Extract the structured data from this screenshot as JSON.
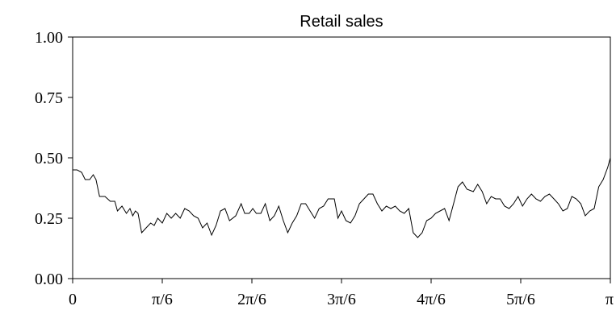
{
  "chart_data": {
    "type": "line",
    "title": "Retail sales",
    "xlabel": "",
    "ylabel": "",
    "xlim": [
      0,
      6
    ],
    "ylim": [
      0,
      1
    ],
    "x_ticks": [
      {
        "value": 0,
        "label": "0"
      },
      {
        "value": 1,
        "label": "π/6"
      },
      {
        "value": 2,
        "label": "2π/6"
      },
      {
        "value": 3,
        "label": "3π/6"
      },
      {
        "value": 4,
        "label": "4π/6"
      },
      {
        "value": 5,
        "label": "5π/6"
      },
      {
        "value": 6,
        "label": "π"
      }
    ],
    "y_ticks": [
      {
        "value": 0.0,
        "label": "0.00"
      },
      {
        "value": 0.25,
        "label": "0.25"
      },
      {
        "value": 0.5,
        "label": "0.50"
      },
      {
        "value": 0.75,
        "label": "0.75"
      },
      {
        "value": 1.0,
        "label": "1.00"
      }
    ],
    "grid": false,
    "series": [
      {
        "color": "#000000",
        "points": [
          [
            0.0,
            0.45
          ],
          [
            0.05,
            0.45
          ],
          [
            0.1,
            0.44
          ],
          [
            0.14,
            0.41
          ],
          [
            0.19,
            0.41
          ],
          [
            0.23,
            0.43
          ],
          [
            0.26,
            0.41
          ],
          [
            0.3,
            0.34
          ],
          [
            0.36,
            0.34
          ],
          [
            0.42,
            0.32
          ],
          [
            0.47,
            0.32
          ],
          [
            0.5,
            0.28
          ],
          [
            0.55,
            0.3
          ],
          [
            0.6,
            0.27
          ],
          [
            0.64,
            0.29
          ],
          [
            0.67,
            0.26
          ],
          [
            0.7,
            0.28
          ],
          [
            0.73,
            0.27
          ],
          [
            0.77,
            0.19
          ],
          [
            0.82,
            0.21
          ],
          [
            0.87,
            0.23
          ],
          [
            0.91,
            0.22
          ],
          [
            0.95,
            0.25
          ],
          [
            1.0,
            0.23
          ],
          [
            1.05,
            0.27
          ],
          [
            1.1,
            0.25
          ],
          [
            1.15,
            0.27
          ],
          [
            1.2,
            0.25
          ],
          [
            1.25,
            0.29
          ],
          [
            1.3,
            0.28
          ],
          [
            1.35,
            0.26
          ],
          [
            1.4,
            0.25
          ],
          [
            1.45,
            0.21
          ],
          [
            1.5,
            0.23
          ],
          [
            1.55,
            0.18
          ],
          [
            1.6,
            0.22
          ],
          [
            1.65,
            0.28
          ],
          [
            1.7,
            0.29
          ],
          [
            1.75,
            0.24
          ],
          [
            1.82,
            0.26
          ],
          [
            1.88,
            0.31
          ],
          [
            1.92,
            0.27
          ],
          [
            1.97,
            0.27
          ],
          [
            2.01,
            0.29
          ],
          [
            2.05,
            0.27
          ],
          [
            2.1,
            0.27
          ],
          [
            2.15,
            0.31
          ],
          [
            2.2,
            0.24
          ],
          [
            2.25,
            0.26
          ],
          [
            2.3,
            0.3
          ],
          [
            2.35,
            0.24
          ],
          [
            2.4,
            0.19
          ],
          [
            2.45,
            0.23
          ],
          [
            2.5,
            0.26
          ],
          [
            2.55,
            0.31
          ],
          [
            2.6,
            0.31
          ],
          [
            2.65,
            0.28
          ],
          [
            2.7,
            0.25
          ],
          [
            2.75,
            0.29
          ],
          [
            2.8,
            0.3
          ],
          [
            2.85,
            0.33
          ],
          [
            2.92,
            0.33
          ],
          [
            2.96,
            0.25
          ],
          [
            3.0,
            0.28
          ],
          [
            3.05,
            0.24
          ],
          [
            3.1,
            0.23
          ],
          [
            3.15,
            0.26
          ],
          [
            3.2,
            0.31
          ],
          [
            3.25,
            0.33
          ],
          [
            3.3,
            0.35
          ],
          [
            3.35,
            0.35
          ],
          [
            3.4,
            0.31
          ],
          [
            3.45,
            0.28
          ],
          [
            3.5,
            0.3
          ],
          [
            3.55,
            0.29
          ],
          [
            3.6,
            0.3
          ],
          [
            3.65,
            0.28
          ],
          [
            3.7,
            0.27
          ],
          [
            3.75,
            0.29
          ],
          [
            3.8,
            0.19
          ],
          [
            3.85,
            0.17
          ],
          [
            3.9,
            0.19
          ],
          [
            3.95,
            0.24
          ],
          [
            4.0,
            0.25
          ],
          [
            4.05,
            0.27
          ],
          [
            4.1,
            0.28
          ],
          [
            4.15,
            0.29
          ],
          [
            4.2,
            0.24
          ],
          [
            4.25,
            0.31
          ],
          [
            4.3,
            0.38
          ],
          [
            4.35,
            0.4
          ],
          [
            4.4,
            0.37
          ],
          [
            4.47,
            0.36
          ],
          [
            4.52,
            0.39
          ],
          [
            4.57,
            0.36
          ],
          [
            4.62,
            0.31
          ],
          [
            4.67,
            0.34
          ],
          [
            4.72,
            0.33
          ],
          [
            4.77,
            0.33
          ],
          [
            4.82,
            0.3
          ],
          [
            4.87,
            0.29
          ],
          [
            4.92,
            0.31
          ],
          [
            4.97,
            0.34
          ],
          [
            5.02,
            0.3
          ],
          [
            5.07,
            0.33
          ],
          [
            5.12,
            0.35
          ],
          [
            5.17,
            0.33
          ],
          [
            5.22,
            0.32
          ],
          [
            5.27,
            0.34
          ],
          [
            5.32,
            0.35
          ],
          [
            5.37,
            0.33
          ],
          [
            5.42,
            0.31
          ],
          [
            5.47,
            0.28
          ],
          [
            5.52,
            0.29
          ],
          [
            5.57,
            0.34
          ],
          [
            5.62,
            0.33
          ],
          [
            5.67,
            0.31
          ],
          [
            5.72,
            0.26
          ],
          [
            5.77,
            0.28
          ],
          [
            5.82,
            0.29
          ],
          [
            5.87,
            0.38
          ],
          [
            5.92,
            0.41
          ],
          [
            5.97,
            0.46
          ],
          [
            6.0,
            0.5
          ]
        ]
      }
    ]
  }
}
